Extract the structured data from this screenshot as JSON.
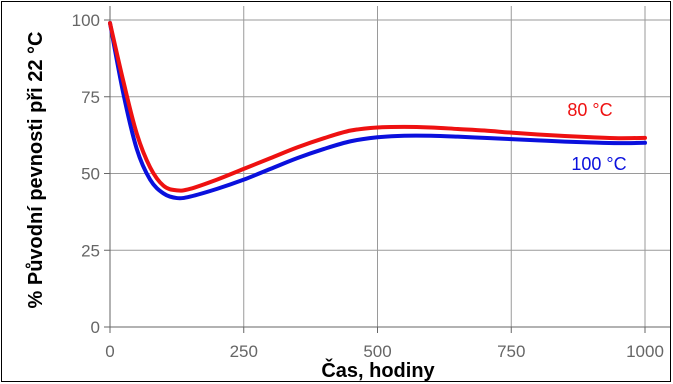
{
  "chart_data": {
    "type": "line",
    "title": "",
    "xlabel": "Čas, hodiny",
    "ylabel": "% Původní pevnosti při 22 °C",
    "xlim": [
      0,
      1000
    ],
    "ylim": [
      0,
      100
    ],
    "x_ticks": [
      "0",
      "250",
      "500",
      "750",
      "1000"
    ],
    "y_ticks": [
      "0",
      "25",
      "50",
      "75",
      "100"
    ],
    "grid": true,
    "series": [
      {
        "name": "80 °C",
        "color": "#ee1111",
        "x": [
          0,
          25,
          50,
          75,
          100,
          125,
          150,
          200,
          250,
          300,
          350,
          400,
          450,
          500,
          550,
          600,
          650,
          700,
          750,
          800,
          850,
          900,
          950,
          1000
        ],
        "y": [
          99,
          80,
          63,
          52,
          46,
          44.5,
          45,
          48,
          51.5,
          55,
          58.5,
          61.5,
          64,
          65,
          65.2,
          65,
          64.5,
          64,
          63.3,
          62.7,
          62.2,
          61.8,
          61.5,
          61.6
        ]
      },
      {
        "name": "100 °C",
        "color": "#0a10dd",
        "x": [
          0,
          25,
          50,
          75,
          100,
          125,
          150,
          200,
          250,
          300,
          350,
          400,
          450,
          500,
          550,
          600,
          650,
          700,
          750,
          800,
          850,
          900,
          950,
          1000
        ],
        "y": [
          99,
          76,
          58,
          48,
          43.5,
          42,
          42.5,
          45,
          48,
          51.5,
          55,
          58,
          60.5,
          61.8,
          62.3,
          62.3,
          62,
          61.6,
          61.2,
          60.8,
          60.4,
          60.1,
          59.9,
          60
        ]
      }
    ]
  }
}
